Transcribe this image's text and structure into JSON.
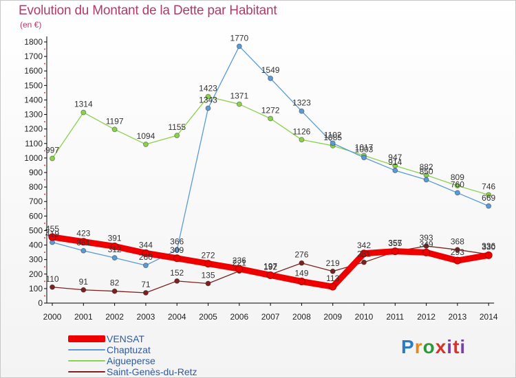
{
  "title": "Evolution du Montant de la Dette par Habitant",
  "subtitle": "(en €)",
  "logo_text": "Proxiti",
  "chart_data": {
    "type": "line",
    "categories": [
      "2000",
      "2001",
      "2002",
      "2003",
      "2004",
      "2005",
      "2006",
      "2007",
      "2008",
      "2009",
      "2010",
      "2011",
      "2012",
      "2013",
      "2014"
    ],
    "ylim": [
      0,
      1800
    ],
    "yticks": [
      0,
      100,
      200,
      300,
      400,
      500,
      600,
      700,
      800,
      900,
      1000,
      1100,
      1200,
      1300,
      1400,
      1500,
      1600,
      1700,
      1800
    ],
    "grid": false,
    "legend_position": "bottom-left",
    "series": [
      {
        "name": "VENSAT",
        "color": "#ee0000",
        "values": [
          455,
          423,
          391,
          344,
          309,
          272,
          236,
          192,
          149,
          113,
          342,
          357,
          349,
          293,
          330
        ]
      },
      {
        "name": "Chaptuzat",
        "color": "#5a9ad6",
        "values": [
          419,
          361,
          312,
          260,
          366,
          1343,
          1770,
          1549,
          1323,
          1102,
          1003,
          914,
          850,
          760,
          669
        ]
      },
      {
        "name": "Aigueperse",
        "color": "#8bd14e",
        "values": [
          997,
          1314,
          1197,
          1094,
          1155,
          1423,
          1371,
          1272,
          1126,
          1085,
          1017,
          947,
          882,
          809,
          746
        ]
      },
      {
        "name": "Saint-Genès-du-Retz",
        "color": "#7a2222",
        "values": [
          110,
          91,
          82,
          71,
          152,
          135,
          221,
          197,
          276,
          219,
          281,
          355,
          393,
          368,
          336
        ]
      }
    ]
  }
}
